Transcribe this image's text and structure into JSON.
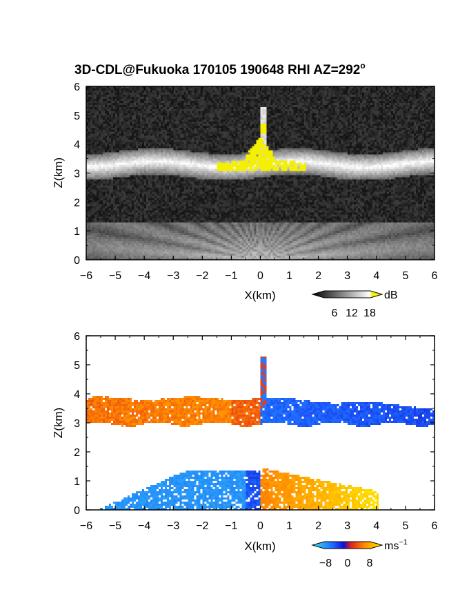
{
  "title": "3D-CDL@Fukuoka 170105 190648 RHI AZ=292",
  "title_superscript": "o",
  "colors": {
    "background": "#ffffff",
    "axis": "#000000",
    "highlight_yellow": "#f5f000",
    "noise_dark": "#1a1a1a"
  },
  "chart_data": [
    {
      "type": "heatmap",
      "name": "reflectivity",
      "xlabel": "X(km)",
      "ylabel": "Z(km)",
      "xlim": [
        -6,
        6
      ],
      "ylim": [
        0,
        6
      ],
      "xticks": [
        -6,
        -5,
        -4,
        -3,
        -2,
        -1,
        0,
        1,
        2,
        3,
        4,
        5,
        6
      ],
      "yticks": [
        0,
        1,
        2,
        3,
        4,
        5,
        6
      ],
      "colorbar": {
        "unit": "dB",
        "ticks": [
          6,
          12,
          18
        ],
        "range": [
          0,
          21
        ],
        "colormap": "grayscale-to-yellow"
      },
      "features": {
        "cloud_layer": {
          "x_range": [
            -6,
            6
          ],
          "z_range": [
            2.9,
            3.8
          ],
          "center_z": 3.3
        },
        "tower": {
          "x": 0.1,
          "z_top": 5.3
        },
        "saturated_region": {
          "x_range": [
            -1.8,
            2.2
          ],
          "z_range": [
            3.0,
            4.2
          ],
          "color": "yellow"
        },
        "near_surface_fan": {
          "x_range": [
            -6,
            6
          ],
          "z_top": 1.3
        }
      }
    },
    {
      "type": "heatmap",
      "name": "doppler_velocity",
      "xlabel": "X(km)",
      "ylabel": "Z(km)",
      "xlim": [
        -6,
        6
      ],
      "ylim": [
        0,
        6
      ],
      "xticks": [
        -6,
        -5,
        -4,
        -3,
        -2,
        -1,
        0,
        1,
        2,
        3,
        4,
        5,
        6
      ],
      "yticks": [
        0,
        1,
        2,
        3,
        4,
        5,
        6
      ],
      "colorbar": {
        "unit": "ms",
        "unit_superscript": "−1",
        "ticks": [
          "−8",
          "0",
          "8"
        ],
        "range": [
          -10,
          10
        ],
        "colormap": "cyan-blue-red-yellow"
      },
      "features": {
        "upper_layer_left": {
          "x_range": [
            -6,
            0
          ],
          "z_range": [
            2.9,
            3.9
          ],
          "sign": "positive (red/orange)"
        },
        "upper_layer_right": {
          "x_range": [
            0,
            6
          ],
          "z_range": [
            2.8,
            3.9
          ],
          "sign": "negative (blue)"
        },
        "tower": {
          "x": 0.1,
          "z_top": 5.3
        },
        "lower_layer_left": {
          "x_range": [
            -5.5,
            0
          ],
          "z_range": [
            0,
            1.4
          ],
          "sign": "negative (cyan)"
        },
        "lower_layer_right": {
          "x_range": [
            0,
            4
          ],
          "z_range": [
            0,
            1.5
          ],
          "sign": "positive (orange/yellow)"
        }
      }
    }
  ]
}
